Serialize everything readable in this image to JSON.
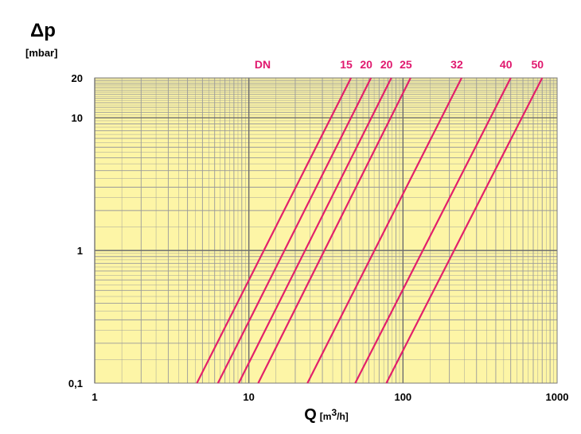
{
  "chart_data": {
    "type": "line",
    "x_scale": "log",
    "y_scale": "log",
    "xlim": [
      1,
      1000
    ],
    "ylim": [
      0.1,
      20
    ],
    "x_ticks": [
      {
        "value": 1,
        "label": "1"
      },
      {
        "value": 10,
        "label": "10"
      },
      {
        "value": 100,
        "label": "100"
      },
      {
        "value": 1000,
        "label": "1000"
      }
    ],
    "y_ticks": [
      {
        "value": 0.1,
        "label": "0,1"
      },
      {
        "value": 1,
        "label": "1"
      },
      {
        "value": 10,
        "label": "10"
      },
      {
        "value": 20,
        "label": "20"
      }
    ],
    "ylabel": {
      "symbol": "Δp",
      "unit": "[mbar]"
    },
    "xlabel": {
      "symbol": "Q",
      "unit_prefix": "[m",
      "unit_sup": "3",
      "unit_suffix": "/h]"
    },
    "series_header": "DN",
    "grid": true,
    "colors": {
      "background": "#fdf5a6",
      "grid": "#9a9a9a",
      "line": "#e2206a",
      "label": "#e0186e"
    },
    "series": [
      {
        "name": "15",
        "points": [
          [
            4.6,
            0.1
          ],
          [
            46,
            20
          ]
        ]
      },
      {
        "name": "20",
        "points": [
          [
            6.3,
            0.1
          ],
          [
            62,
            20
          ]
        ]
      },
      {
        "name": "20",
        "points": [
          [
            8.6,
            0.1
          ],
          [
            84,
            20
          ]
        ]
      },
      {
        "name": "25",
        "points": [
          [
            11.5,
            0.1
          ],
          [
            112,
            20
          ]
        ]
      },
      {
        "name": "32",
        "points": [
          [
            24,
            0.1
          ],
          [
            240,
            20
          ]
        ]
      },
      {
        "name": "40",
        "points": [
          [
            49,
            0.1
          ],
          [
            500,
            20
          ]
        ]
      },
      {
        "name": "50",
        "points": [
          [
            78,
            0.1
          ],
          [
            800,
            20
          ]
        ]
      }
    ]
  }
}
